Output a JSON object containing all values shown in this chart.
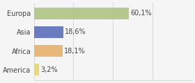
{
  "categories": [
    "America",
    "Africa",
    "Asia",
    "Europa"
  ],
  "values": [
    3.2,
    18.1,
    18.6,
    60.1
  ],
  "labels": [
    "3,2%",
    "18,1%",
    "18,6%",
    "60,1%"
  ],
  "colors": [
    "#e8d87a",
    "#e8b87a",
    "#6b7dbf",
    "#b5c98e"
  ],
  "background_color": "#f5f5f5",
  "xlim": [
    0,
    100
  ],
  "bar_height": 0.62,
  "label_fontsize": 7.0,
  "category_fontsize": 7.0
}
